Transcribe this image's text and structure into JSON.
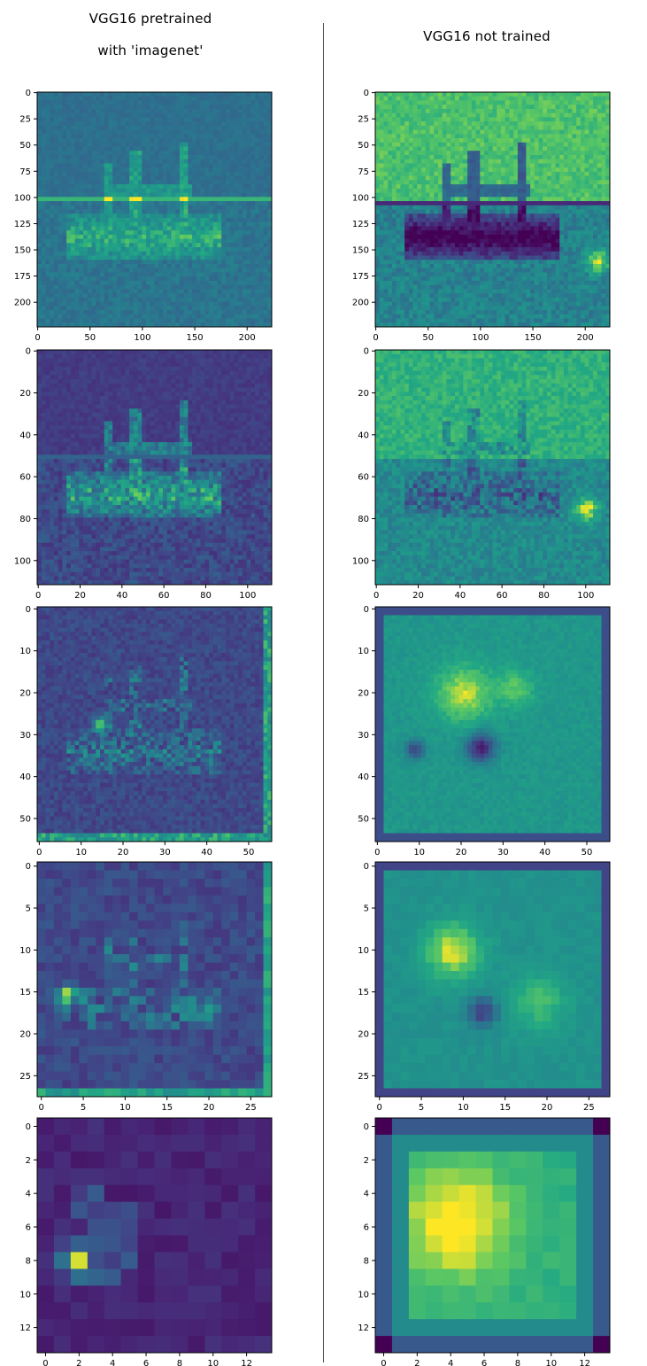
{
  "titles": {
    "left_line1": "VGG16 pretrained",
    "left_line2": "with 'imagenet'",
    "right": "VGG16 not trained"
  },
  "colormap": "viridis",
  "colors": {
    "viridis_low": "#440154",
    "viridis_mid": "#21908d",
    "viridis_high": "#fde725",
    "divider": "#555555"
  },
  "chart_data": [
    {
      "type": "heatmap",
      "model": "pretrained",
      "layer_index": 1,
      "size": 224,
      "xticks": [
        0,
        50,
        100,
        150,
        200
      ],
      "yticks": [
        0,
        25,
        50,
        75,
        100,
        125,
        150,
        175,
        200
      ],
      "tone": "mostly teal with bright edges of a fishing boat; horizon at ~103"
    },
    {
      "type": "heatmap",
      "model": "not trained",
      "layer_index": 1,
      "size": 224,
      "xticks": [
        0,
        50,
        100,
        150,
        200
      ],
      "yticks": [
        0,
        25,
        50,
        75,
        100,
        125,
        150,
        175,
        200
      ],
      "tone": "green/yellow sky, dark boat silhouette, dark sea band"
    },
    {
      "type": "heatmap",
      "model": "pretrained",
      "layer_index": 2,
      "size": 112,
      "xticks": [
        0,
        20,
        40,
        60,
        80,
        100
      ],
      "yticks": [
        0,
        20,
        40,
        60,
        80,
        100
      ],
      "tone": "dark purple background, bright teal boat edges"
    },
    {
      "type": "heatmap",
      "model": "not trained",
      "layer_index": 2,
      "size": 112,
      "xticks": [
        0,
        20,
        40,
        60,
        80,
        100
      ],
      "yticks": [
        0,
        20,
        40,
        60,
        80,
        100
      ],
      "tone": "green sky, teal sea, yellow highlights on boat"
    },
    {
      "type": "heatmap",
      "model": "pretrained",
      "layer_index": 3,
      "size": 56,
      "xticks": [
        0,
        10,
        20,
        30,
        40,
        50
      ],
      "yticks": [
        0,
        10,
        20,
        30,
        40,
        50
      ],
      "tone": "purple with teal boat outline, yellow hotspot near (14,28)"
    },
    {
      "type": "heatmap",
      "model": "not trained",
      "layer_index": 3,
      "size": 56,
      "xticks": [
        0,
        10,
        20,
        30,
        40,
        50
      ],
      "yticks": [
        0,
        10,
        20,
        30,
        40,
        50
      ],
      "tone": "smooth green with yellow around (20,20), dark blobs near (25,35)"
    },
    {
      "type": "heatmap",
      "model": "pretrained",
      "layer_index": 4,
      "size": 28,
      "xticks": [
        0,
        5,
        10,
        15,
        20,
        25
      ],
      "yticks": [
        0,
        5,
        10,
        15,
        20,
        25
      ],
      "tone": "purple/blue with teal boat, yellow-green spot near (3,16)"
    },
    {
      "type": "heatmap",
      "model": "not trained",
      "layer_index": 4,
      "size": 28,
      "xticks": [
        0,
        5,
        10,
        15,
        20,
        25
      ],
      "yticks": [
        0,
        5,
        10,
        15,
        20,
        25
      ],
      "tone": "green with yellow near (9,10), dark spot near (13,18)"
    },
    {
      "type": "heatmap",
      "model": "pretrained",
      "layer_index": 5,
      "size": 14,
      "xticks": [
        0,
        2,
        4,
        6,
        8,
        10,
        12
      ],
      "yticks": [
        0,
        2,
        4,
        6,
        8,
        10,
        12
      ],
      "tone": "dark purple with yellow hotspot at (2,8)"
    },
    {
      "type": "heatmap",
      "model": "not trained",
      "layer_index": 5,
      "size": 14,
      "xticks": [
        0,
        2,
        4,
        6,
        8,
        10,
        12
      ],
      "yticks": [
        0,
        2,
        4,
        6,
        8,
        10,
        12
      ],
      "tone": "dark border, green ring, yellow center around (4,6)"
    }
  ]
}
